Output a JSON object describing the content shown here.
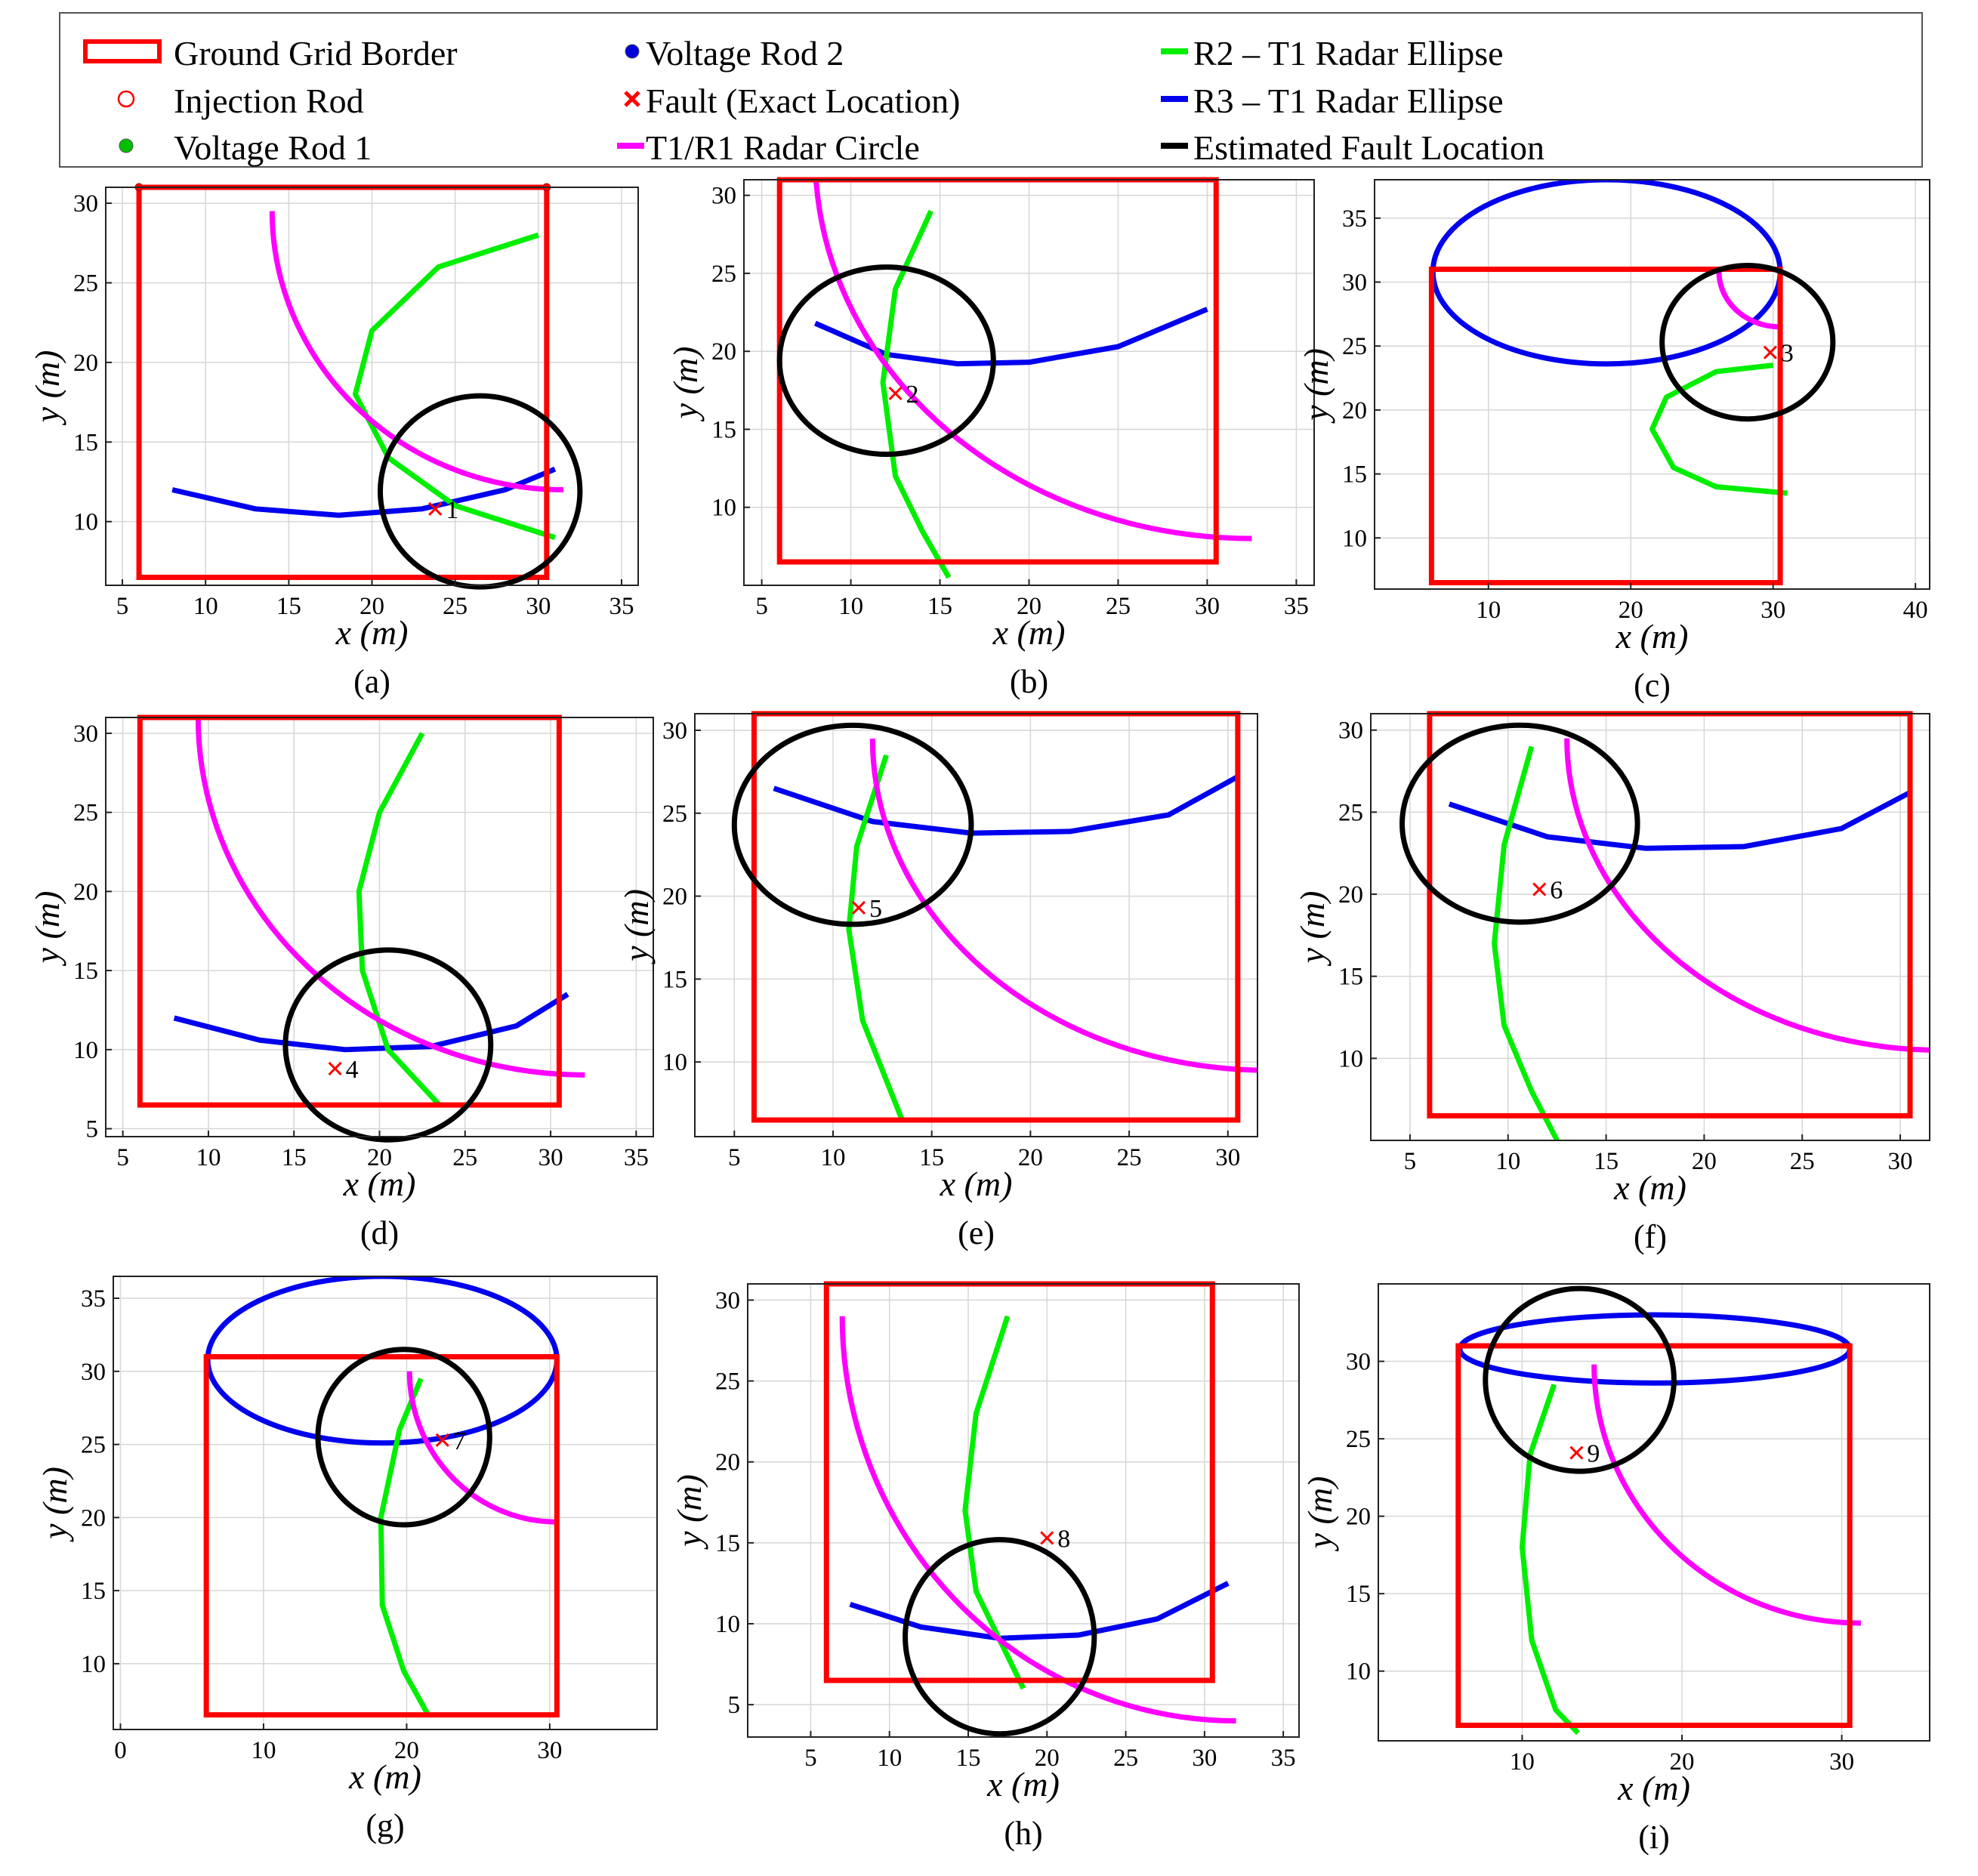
{
  "legend": [
    {
      "label": "Ground Grid Border",
      "symbol": "square-outline",
      "color": "#ff0000"
    },
    {
      "label": "Injection Rod",
      "symbol": "circle-open",
      "color": "#ff0000"
    },
    {
      "label": "Voltage Rod 1",
      "symbol": "dot",
      "color": "#00c000"
    },
    {
      "label": "Voltage Rod 2",
      "symbol": "dot",
      "color": "#0000dd"
    },
    {
      "label": "Fault (Exact Location)",
      "symbol": "x-marker",
      "color": "#ff0000"
    },
    {
      "label": "T1/R1 Radar Circle",
      "symbol": "line",
      "color": "#ff00ff"
    },
    {
      "label": "R2 – T1 Radar Ellipse",
      "symbol": "line",
      "color": "#00ee00"
    },
    {
      "label": "R3 – T1 Radar Ellipse",
      "symbol": "line",
      "color": "#0000ee"
    },
    {
      "label": "Estimated Fault Location",
      "symbol": "line",
      "color": "#000000"
    }
  ],
  "colors": {
    "grid_border": "#ff0000",
    "t1r1": "#ff00ff",
    "r2t1": "#00ee00",
    "r3t1": "#0000ee",
    "estimate": "#000000",
    "fault": "#ff0000"
  },
  "chart_data": [
    {
      "type": "line",
      "caption": "(a)",
      "xlabel": "x (m)",
      "ylabel": "y (m)",
      "xlim": [
        4,
        36
      ],
      "ylim": [
        6,
        31
      ],
      "xticks": [
        5,
        10,
        15,
        20,
        25,
        30,
        35
      ],
      "yticks": [
        10,
        15,
        20,
        25,
        30
      ],
      "border": [
        6,
        6.5,
        30.5,
        31
      ],
      "rods": [
        [
          6,
          31
        ],
        [
          30.5,
          31
        ]
      ],
      "t1r1": {
        "cx": 31.5,
        "cy": 29.5,
        "r": 17.5,
        "a0": 180,
        "a1": 270
      },
      "r2t1": {
        "points": [
          [
            30,
            28
          ],
          [
            24,
            26
          ],
          [
            20,
            22
          ],
          [
            19,
            18
          ],
          [
            21,
            14
          ],
          [
            25,
            11
          ],
          [
            31,
            9
          ]
        ]
      },
      "r3t1": {
        "points": [
          [
            8,
            12
          ],
          [
            13,
            10.8
          ],
          [
            18,
            10.4
          ],
          [
            23,
            10.8
          ],
          [
            28,
            12
          ],
          [
            31,
            13.3
          ]
        ]
      },
      "estimate": {
        "cx": 26.5,
        "cy": 11.9,
        "r": 6.0
      },
      "fault": {
        "x": 23.8,
        "y": 10.8,
        "label": "1"
      }
    },
    {
      "type": "line",
      "caption": "(b)",
      "xlabel": "x (m)",
      "ylabel": "y (m)",
      "xlim": [
        4,
        36
      ],
      "ylim": [
        5,
        31
      ],
      "xticks": [
        5,
        10,
        15,
        20,
        25,
        30,
        35
      ],
      "yticks": [
        10,
        15,
        20,
        25,
        30
      ],
      "border": [
        6,
        6.5,
        30.5,
        31
      ],
      "rods": [],
      "t1r1": {
        "cx": 32.5,
        "cy": 32.5,
        "r": 24.5,
        "a0": 180,
        "a1": 270
      },
      "r2t1": {
        "points": [
          [
            14.5,
            29
          ],
          [
            12.5,
            24
          ],
          [
            11.8,
            18
          ],
          [
            12.5,
            12
          ],
          [
            14,
            8.5
          ],
          [
            15.5,
            5.5
          ]
        ]
      },
      "r3t1": {
        "points": [
          [
            8,
            21.8
          ],
          [
            12,
            19.8
          ],
          [
            16,
            19.2
          ],
          [
            20,
            19.3
          ],
          [
            25,
            20.3
          ],
          [
            30,
            22.7
          ]
        ]
      },
      "estimate": {
        "cx": 12,
        "cy": 19.4,
        "r": 6.0
      },
      "fault": {
        "x": 12.5,
        "y": 17.3,
        "label": "2"
      }
    },
    {
      "type": "line",
      "caption": "(c)",
      "xlabel": "x (m)",
      "ylabel": "y (m)",
      "xlim": [
        2,
        41
      ],
      "ylim": [
        6,
        38
      ],
      "xticks": [
        10,
        20,
        30,
        40
      ],
      "yticks": [
        10,
        15,
        20,
        25,
        30,
        35
      ],
      "border": [
        6,
        6.5,
        30.5,
        31
      ],
      "rods": [],
      "t1r1": {
        "cx": 30.5,
        "cy": 30.8,
        "r": 4.3,
        "a0": 180,
        "a1": 270
      },
      "r2t1": {
        "points": [
          [
            30,
            23.5
          ],
          [
            26,
            23
          ],
          [
            22.5,
            21
          ],
          [
            21.5,
            18.5
          ],
          [
            23,
            15.5
          ],
          [
            26,
            14
          ],
          [
            31,
            13.5
          ]
        ]
      },
      "r3t1": {
        "ellipse": {
          "cx": 18.3,
          "cy": 30.8,
          "rx": 12.2,
          "ry": 7.2
        }
      },
      "estimate": {
        "cx": 28.2,
        "cy": 25.3,
        "r": 6.0
      },
      "fault": {
        "x": 29.8,
        "y": 24.5,
        "label": "3"
      }
    },
    {
      "type": "line",
      "caption": "(d)",
      "xlabel": "x (m)",
      "ylabel": "y (m)",
      "xlim": [
        4,
        36
      ],
      "ylim": [
        4.5,
        31
      ],
      "xticks": [
        5,
        10,
        15,
        20,
        25,
        30,
        35
      ],
      "yticks": [
        5,
        10,
        15,
        20,
        25,
        30
      ],
      "border": [
        6,
        6.5,
        30.5,
        31
      ],
      "rods": [],
      "t1r1": {
        "cx": 32,
        "cy": 31,
        "r": 22.6,
        "a0": 180,
        "a1": 270
      },
      "r2t1": {
        "points": [
          [
            22.5,
            30
          ],
          [
            20,
            25
          ],
          [
            18.8,
            20
          ],
          [
            19,
            15
          ],
          [
            20.5,
            10
          ],
          [
            23.5,
            6.5
          ]
        ]
      },
      "r3t1": {
        "points": [
          [
            8,
            12
          ],
          [
            13,
            10.6
          ],
          [
            18,
            10
          ],
          [
            23,
            10.2
          ],
          [
            28,
            11.5
          ],
          [
            31,
            13.5
          ]
        ]
      },
      "estimate": {
        "cx": 20.5,
        "cy": 10.3,
        "r": 6.0
      },
      "fault": {
        "x": 17.4,
        "y": 8.8,
        "label": "4"
      }
    },
    {
      "type": "line",
      "caption": "(e)",
      "xlabel": "x (m)",
      "ylabel": "y (m)",
      "xlim": [
        3,
        31.5
      ],
      "ylim": [
        5.5,
        31
      ],
      "xticks": [
        5,
        10,
        15,
        20,
        25,
        30
      ],
      "yticks": [
        10,
        15,
        20,
        25,
        30
      ],
      "border": [
        6,
        6.5,
        30.5,
        31
      ],
      "rods": [],
      "t1r1": {
        "cx": 32,
        "cy": 29.5,
        "r": 20.0,
        "a0": 180,
        "a1": 270
      },
      "r2t1": {
        "points": [
          [
            12.7,
            28.5
          ],
          [
            11.2,
            23
          ],
          [
            10.8,
            18
          ],
          [
            11.5,
            12.5
          ],
          [
            13.5,
            6.5
          ]
        ]
      },
      "r3t1": {
        "points": [
          [
            7,
            26.5
          ],
          [
            12,
            24.5
          ],
          [
            17,
            23.8
          ],
          [
            22,
            23.9
          ],
          [
            27,
            24.9
          ],
          [
            30.5,
            27.2
          ]
        ]
      },
      "estimate": {
        "cx": 11,
        "cy": 24.3,
        "r": 6.0
      },
      "fault": {
        "x": 11.3,
        "y": 19.3,
        "label": "5"
      }
    },
    {
      "type": "line",
      "caption": "(f)",
      "xlabel": "x (m)",
      "ylabel": "y (m)",
      "xlim": [
        3,
        31.5
      ],
      "ylim": [
        5,
        31
      ],
      "xticks": [
        5,
        10,
        15,
        20,
        25,
        30
      ],
      "yticks": [
        10,
        15,
        20,
        25,
        30
      ],
      "border": [
        6,
        6.5,
        30.5,
        31
      ],
      "rods": [],
      "t1r1": {
        "cx": 32,
        "cy": 29.5,
        "r": 19.0,
        "a0": 180,
        "a1": 270
      },
      "r2t1": {
        "points": [
          [
            11.2,
            29
          ],
          [
            9.8,
            23
          ],
          [
            9.3,
            17
          ],
          [
            9.8,
            12
          ],
          [
            11.2,
            8
          ],
          [
            12.5,
            5
          ]
        ]
      },
      "r3t1": {
        "points": [
          [
            7,
            25.5
          ],
          [
            12,
            23.5
          ],
          [
            17,
            22.8
          ],
          [
            22,
            22.9
          ],
          [
            27,
            24
          ],
          [
            30.5,
            26.2
          ]
        ]
      },
      "estimate": {
        "cx": 10.6,
        "cy": 24.3,
        "r": 6.0
      },
      "fault": {
        "x": 11.6,
        "y": 20.3,
        "label": "6"
      }
    },
    {
      "type": "line",
      "caption": "(g)",
      "xlabel": "x (m)",
      "ylabel": "y (m)",
      "xlim": [
        -0.5,
        37.5
      ],
      "ylim": [
        5.5,
        36.5
      ],
      "xticks": [
        0,
        10,
        20,
        30
      ],
      "yticks": [
        10,
        15,
        20,
        25,
        30,
        35
      ],
      "border": [
        6,
        6.5,
        30.5,
        31
      ],
      "rods": [],
      "t1r1": {
        "cx": 30.5,
        "cy": 30,
        "r": 10.3,
        "a0": 180,
        "a1": 270
      },
      "r2t1": {
        "points": [
          [
            21,
            29.5
          ],
          [
            19.5,
            26
          ],
          [
            18.2,
            20
          ],
          [
            18.3,
            14
          ],
          [
            19.8,
            9.5
          ],
          [
            21.5,
            6.5
          ]
        ]
      },
      "r3t1": {
        "ellipse": {
          "cx": 18.3,
          "cy": 30.8,
          "rx": 12.2,
          "ry": 5.7
        }
      },
      "estimate": {
        "cx": 19.8,
        "cy": 25.5,
        "r": 6.0
      },
      "fault": {
        "x": 22.5,
        "y": 25.3,
        "label": "7"
      }
    },
    {
      "type": "line",
      "caption": "(h)",
      "xlabel": "x (m)",
      "ylabel": "y (m)",
      "xlim": [
        1,
        36
      ],
      "ylim": [
        3,
        31
      ],
      "xticks": [
        5,
        10,
        15,
        20,
        25,
        30,
        35
      ],
      "yticks": [
        5,
        10,
        15,
        20,
        25,
        30
      ],
      "border": [
        6,
        6.5,
        30.5,
        31
      ],
      "rods": [],
      "t1r1": {
        "cx": 32,
        "cy": 29,
        "r": 25.0,
        "a0": 180,
        "a1": 270
      },
      "r2t1": {
        "points": [
          [
            17.5,
            29
          ],
          [
            15.5,
            23
          ],
          [
            14.8,
            17
          ],
          [
            15.5,
            12
          ],
          [
            18.5,
            6
          ]
        ]
      },
      "r3t1": {
        "points": [
          [
            7.5,
            11.2
          ],
          [
            12,
            9.8
          ],
          [
            17,
            9.1
          ],
          [
            22,
            9.3
          ],
          [
            27,
            10.3
          ],
          [
            31.5,
            12.5
          ]
        ]
      },
      "estimate": {
        "cx": 17,
        "cy": 9.2,
        "r": 6.0
      },
      "fault": {
        "x": 20,
        "y": 15.3,
        "label": "8"
      }
    },
    {
      "type": "line",
      "caption": "(i)",
      "xlabel": "x (m)",
      "ylabel": "y (m)",
      "xlim": [
        1,
        35.5
      ],
      "ylim": [
        5.5,
        35
      ],
      "xticks": [
        10,
        20,
        30
      ],
      "yticks": [
        10,
        15,
        20,
        25,
        30
      ],
      "border": [
        6,
        6.5,
        30.5,
        31
      ],
      "rods": [],
      "t1r1": {
        "cx": 31.2,
        "cy": 29.8,
        "r": 16.7,
        "a0": 180,
        "a1": 270
      },
      "r2t1": {
        "points": [
          [
            12,
            28.5
          ],
          [
            10.5,
            24
          ],
          [
            10,
            18
          ],
          [
            10.6,
            12
          ],
          [
            12.1,
            7.5
          ],
          [
            13.5,
            6
          ]
        ]
      },
      "r3t1": {
        "ellipse": {
          "cx": 18.3,
          "cy": 30.8,
          "rx": 12.2,
          "ry": 2.2
        }
      },
      "estimate": {
        "cx": 13.6,
        "cy": 28.8,
        "r": 5.9
      },
      "fault": {
        "x": 13.4,
        "y": 24.1,
        "label": "9"
      }
    }
  ]
}
